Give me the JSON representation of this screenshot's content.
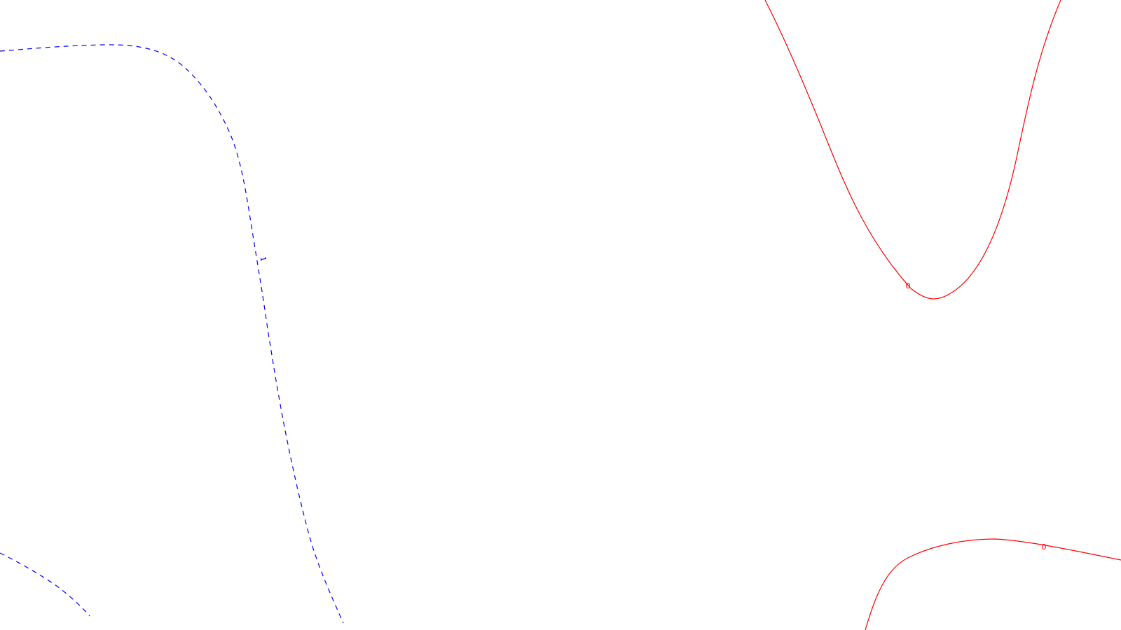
{
  "map": {
    "background_color": "#ffffff",
    "contours": [
      {
        "id": "blue-dashed",
        "color": "#0000ff",
        "line_style": "dashed",
        "labels": [
          "1"
        ]
      },
      {
        "id": "red-upper",
        "color": "#ff0000",
        "line_style": "solid",
        "labels": [
          "0"
        ]
      },
      {
        "id": "red-lower",
        "color": "#ff0000",
        "line_style": "solid",
        "labels": [
          "0"
        ]
      }
    ]
  }
}
